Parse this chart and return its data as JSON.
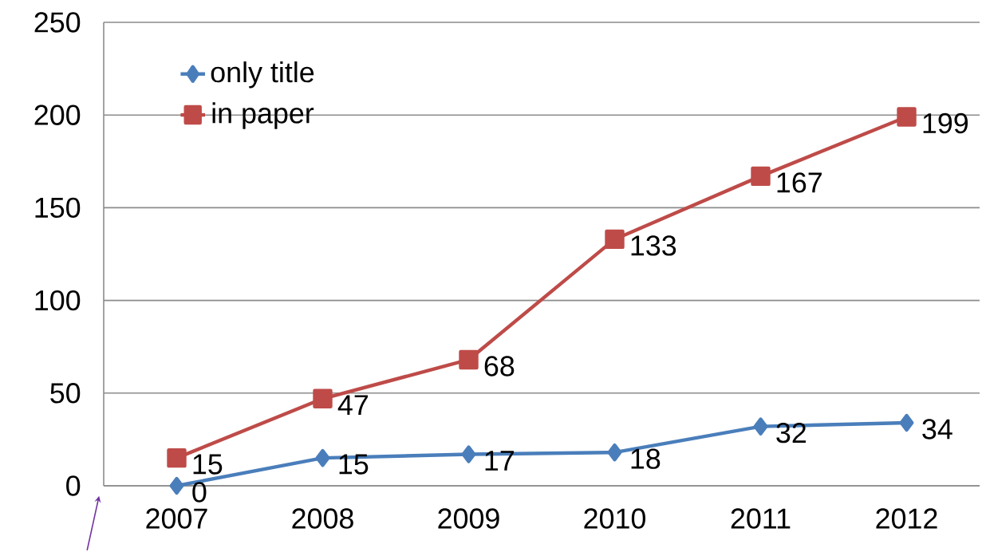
{
  "chart_data": {
    "type": "line",
    "categories": [
      "2007",
      "2008",
      "2009",
      "2010",
      "2011",
      "2012"
    ],
    "series": [
      {
        "name": "only title",
        "color": "#4a7ebb",
        "marker": "diamond",
        "values": [
          0,
          15,
          17,
          18,
          32,
          34
        ]
      },
      {
        "name": "in paper",
        "color": "#be4b48",
        "marker": "square",
        "values": [
          15,
          47,
          68,
          133,
          167,
          199
        ]
      }
    ],
    "ylim": [
      0,
      250
    ],
    "yticks": [
      0,
      50,
      100,
      150,
      200,
      250
    ],
    "grid": "y",
    "legend": "top left",
    "data_labels": true
  }
}
